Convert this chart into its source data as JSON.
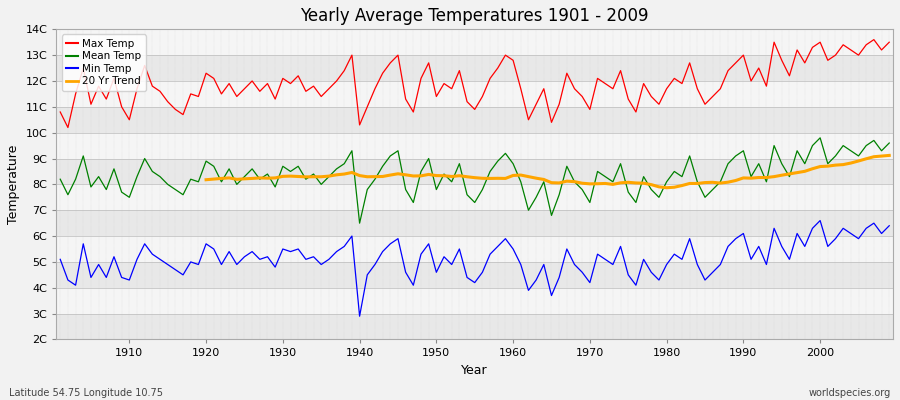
{
  "title": "Yearly Average Temperatures 1901 - 2009",
  "xlabel": "Year",
  "ylabel": "Temperature",
  "subtitle_left": "Latitude 54.75 Longitude 10.75",
  "subtitle_right": "worldspecies.org",
  "years": [
    1901,
    1902,
    1903,
    1904,
    1905,
    1906,
    1907,
    1908,
    1909,
    1910,
    1911,
    1912,
    1913,
    1914,
    1915,
    1916,
    1917,
    1918,
    1919,
    1920,
    1921,
    1922,
    1923,
    1924,
    1925,
    1926,
    1927,
    1928,
    1929,
    1930,
    1931,
    1932,
    1933,
    1934,
    1935,
    1936,
    1937,
    1938,
    1939,
    1940,
    1941,
    1942,
    1943,
    1944,
    1945,
    1946,
    1947,
    1948,
    1949,
    1950,
    1951,
    1952,
    1953,
    1954,
    1955,
    1956,
    1957,
    1958,
    1959,
    1960,
    1961,
    1962,
    1963,
    1964,
    1965,
    1966,
    1967,
    1968,
    1969,
    1970,
    1971,
    1972,
    1973,
    1974,
    1975,
    1976,
    1977,
    1978,
    1979,
    1980,
    1981,
    1982,
    1983,
    1984,
    1985,
    1986,
    1987,
    1988,
    1989,
    1990,
    1991,
    1992,
    1993,
    1994,
    1995,
    1996,
    1997,
    1998,
    1999,
    2000,
    2001,
    2002,
    2003,
    2004,
    2005,
    2006,
    2007,
    2008,
    2009
  ],
  "max_temp": [
    10.8,
    10.2,
    11.5,
    12.5,
    11.1,
    11.8,
    11.3,
    12.1,
    11.0,
    10.5,
    11.7,
    12.6,
    11.8,
    11.6,
    11.2,
    10.9,
    10.7,
    11.5,
    11.4,
    12.3,
    12.1,
    11.5,
    11.9,
    11.4,
    11.7,
    12.0,
    11.6,
    11.9,
    11.3,
    12.1,
    11.9,
    12.2,
    11.6,
    11.8,
    11.4,
    11.7,
    12.0,
    12.4,
    13.0,
    10.3,
    11.0,
    11.7,
    12.3,
    12.7,
    13.0,
    11.3,
    10.8,
    12.1,
    12.7,
    11.4,
    11.9,
    11.7,
    12.4,
    11.2,
    10.9,
    11.4,
    12.1,
    12.5,
    13.0,
    12.8,
    11.7,
    10.5,
    11.1,
    11.7,
    10.4,
    11.1,
    12.3,
    11.7,
    11.4,
    10.9,
    12.1,
    11.9,
    11.7,
    12.4,
    11.3,
    10.8,
    11.9,
    11.4,
    11.1,
    11.7,
    12.1,
    11.9,
    12.7,
    11.7,
    11.1,
    11.4,
    11.7,
    12.4,
    12.7,
    13.0,
    12.0,
    12.5,
    11.8,
    13.5,
    12.8,
    12.2,
    13.2,
    12.7,
    13.3,
    13.5,
    12.8,
    13.0,
    13.4,
    13.2,
    13.0,
    13.4,
    13.6,
    13.2,
    13.5
  ],
  "mean_temp": [
    8.2,
    7.6,
    8.2,
    9.1,
    7.9,
    8.3,
    7.8,
    8.6,
    7.7,
    7.5,
    8.3,
    9.0,
    8.5,
    8.3,
    8.0,
    7.8,
    7.6,
    8.2,
    8.1,
    8.9,
    8.7,
    8.1,
    8.6,
    8.0,
    8.3,
    8.6,
    8.2,
    8.4,
    7.9,
    8.7,
    8.5,
    8.7,
    8.2,
    8.4,
    8.0,
    8.3,
    8.6,
    8.8,
    9.3,
    6.5,
    7.8,
    8.2,
    8.7,
    9.1,
    9.3,
    7.8,
    7.3,
    8.5,
    9.0,
    7.8,
    8.4,
    8.1,
    8.8,
    7.6,
    7.3,
    7.8,
    8.5,
    8.9,
    9.2,
    8.8,
    8.1,
    7.0,
    7.5,
    8.1,
    6.8,
    7.6,
    8.7,
    8.1,
    7.8,
    7.3,
    8.5,
    8.3,
    8.1,
    8.8,
    7.7,
    7.3,
    8.3,
    7.8,
    7.5,
    8.1,
    8.5,
    8.3,
    9.1,
    8.1,
    7.5,
    7.8,
    8.1,
    8.8,
    9.1,
    9.3,
    8.3,
    8.8,
    8.1,
    9.5,
    8.8,
    8.3,
    9.3,
    8.8,
    9.5,
    9.8,
    8.8,
    9.1,
    9.5,
    9.3,
    9.1,
    9.5,
    9.7,
    9.3,
    9.6
  ],
  "min_temp": [
    5.1,
    4.3,
    4.1,
    5.7,
    4.4,
    4.9,
    4.4,
    5.2,
    4.4,
    4.3,
    5.1,
    5.7,
    5.3,
    5.1,
    4.9,
    4.7,
    4.5,
    5.0,
    4.9,
    5.7,
    5.5,
    4.9,
    5.4,
    4.9,
    5.2,
    5.4,
    5.1,
    5.2,
    4.8,
    5.5,
    5.4,
    5.5,
    5.1,
    5.2,
    4.9,
    5.1,
    5.4,
    5.6,
    6.0,
    2.9,
    4.5,
    4.9,
    5.4,
    5.7,
    5.9,
    4.6,
    4.1,
    5.3,
    5.7,
    4.6,
    5.2,
    4.9,
    5.5,
    4.4,
    4.2,
    4.6,
    5.3,
    5.6,
    5.9,
    5.5,
    4.9,
    3.9,
    4.3,
    4.9,
    3.7,
    4.4,
    5.5,
    4.9,
    4.6,
    4.2,
    5.3,
    5.1,
    4.9,
    5.6,
    4.5,
    4.1,
    5.1,
    4.6,
    4.3,
    4.9,
    5.3,
    5.1,
    5.9,
    4.9,
    4.3,
    4.6,
    4.9,
    5.6,
    5.9,
    6.1,
    5.1,
    5.6,
    4.9,
    6.3,
    5.6,
    5.1,
    6.1,
    5.6,
    6.3,
    6.6,
    5.6,
    5.9,
    6.3,
    6.1,
    5.9,
    6.3,
    6.5,
    6.1,
    6.4
  ],
  "trend_color": "#FFA500",
  "max_color": "#FF0000",
  "mean_color": "#008000",
  "min_color": "#0000FF",
  "fig_bg_color": "#F2F2F2",
  "plot_bg_color": "#FFFFFF",
  "band_color_even": "#E8E8E8",
  "band_color_odd": "#F5F5F5",
  "ylim": [
    2,
    14
  ],
  "yticks": [
    2,
    3,
    4,
    5,
    6,
    7,
    8,
    9,
    10,
    11,
    12,
    13,
    14
  ],
  "ytick_labels": [
    "2C",
    "3C",
    "4C",
    "5C",
    "6C",
    "7C",
    "8C",
    "9C",
    "10C",
    "11C",
    "12C",
    "13C",
    "14C"
  ],
  "xtick_positions": [
    1910,
    1920,
    1930,
    1940,
    1950,
    1960,
    1970,
    1980,
    1990,
    2000
  ],
  "trend_window": 20
}
